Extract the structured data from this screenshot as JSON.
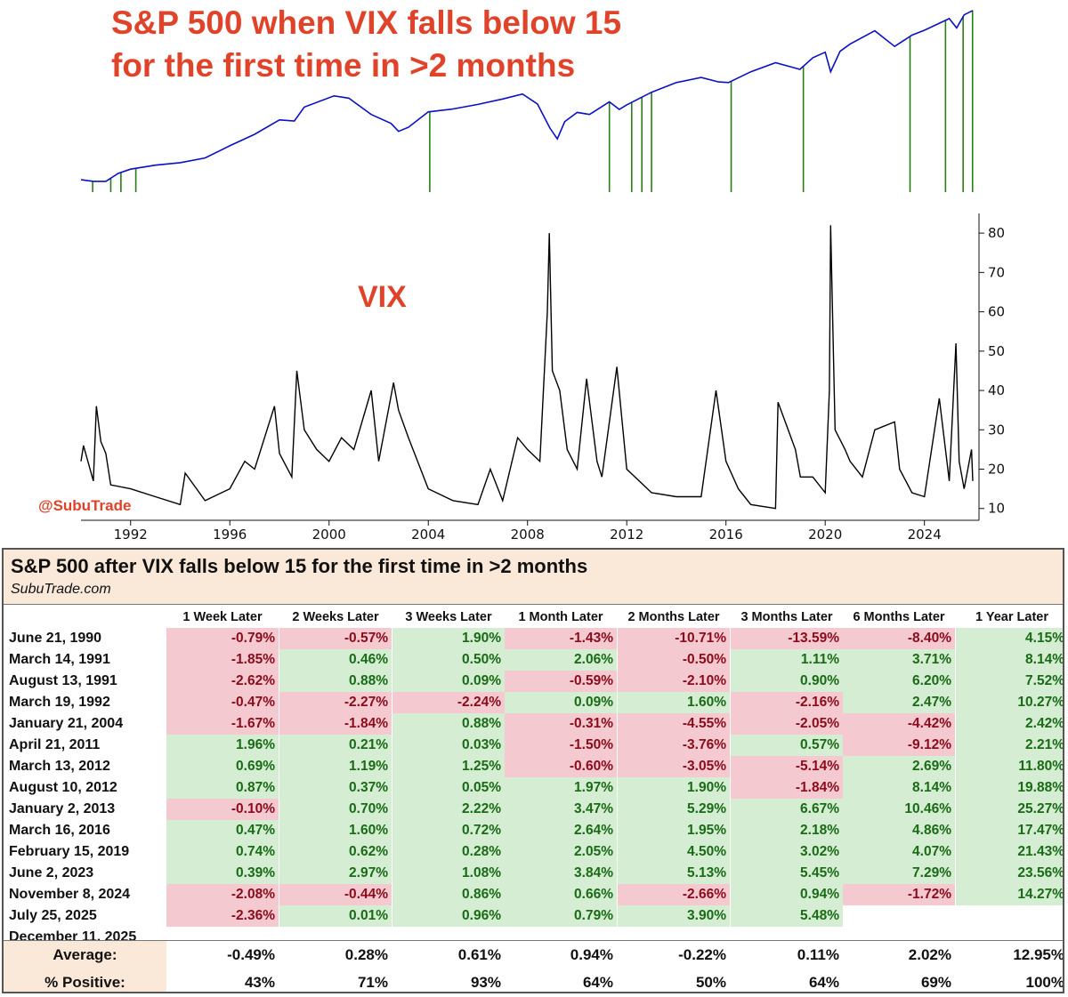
{
  "top_title": [
    "S&P 500 when VIX falls below 15",
    "for the first time in >2 months"
  ],
  "vix_label": "VIX",
  "handle": "@SubuTrade",
  "colors": {
    "spx_line": "#0b10c4",
    "marker": "#2b7d16",
    "vix_line": "#000000",
    "title_red": "#e0432a",
    "cell_pos": "#d4edd3",
    "cell_neg": "#f4c9cf",
    "header_bg": "#fae8d8"
  },
  "chart_data": [
    {
      "type": "line",
      "title": "S&P 500 when VIX falls below 15 for the first time in >2 months",
      "scale": "log",
      "x": [
        1990.0,
        1990.5,
        1991.0,
        1991.5,
        1992.0,
        1993.0,
        1994.0,
        1995.0,
        1996.0,
        1997.0,
        1998.0,
        1998.6,
        1999.0,
        2000.2,
        2000.8,
        2001.7,
        2002.5,
        2002.8,
        2003.2,
        2004.0,
        2005.0,
        2006.0,
        2007.0,
        2007.8,
        2008.4,
        2008.9,
        2009.2,
        2009.5,
        2010.0,
        2010.5,
        2011.3,
        2011.7,
        2012.0,
        2013.0,
        2014.0,
        2015.0,
        2015.7,
        2016.1,
        2017.0,
        2018.0,
        2018.98,
        2019.5,
        2020.0,
        2020.22,
        2020.6,
        2021.0,
        2022.0,
        2022.8,
        2023.5,
        2024.0,
        2025.0,
        2025.3,
        2025.6,
        2025.95
      ],
      "values": [
        340,
        330,
        330,
        380,
        410,
        440,
        460,
        500,
        620,
        760,
        980,
        960,
        1230,
        1500,
        1440,
        1080,
        920,
        800,
        860,
        1130,
        1190,
        1290,
        1420,
        1550,
        1300,
        850,
        700,
        950,
        1120,
        1080,
        1350,
        1180,
        1280,
        1600,
        1900,
        2080,
        1920,
        1900,
        2300,
        2700,
        2400,
        2950,
        3250,
        2300,
        3300,
        3750,
        4750,
        3600,
        4400,
        4800,
        5900,
        5000,
        6300,
        6800
      ],
      "ylim": [
        300,
        7000
      ],
      "signal_dates": [
        "June 21, 1990",
        "March 14, 1991",
        "August 13, 1991",
        "March 19, 1992",
        "January 21, 2004",
        "April 21, 2011",
        "March 13, 2012",
        "August 10, 2012",
        "January 2, 2013",
        "March 16, 2016",
        "February 15, 2019",
        "June 2, 2023",
        "November 8, 2024",
        "July 25, 2025",
        "December 11, 2025"
      ],
      "signal_x": [
        1990.47,
        1991.2,
        1991.61,
        1992.21,
        2004.06,
        2011.3,
        2012.2,
        2012.61,
        2013.0,
        2016.21,
        2019.12,
        2023.42,
        2024.85,
        2025.56,
        2025.94
      ]
    },
    {
      "type": "line",
      "title": "VIX",
      "x": [
        1990.0,
        1990.1,
        1990.5,
        1990.62,
        1990.8,
        1991.0,
        1991.2,
        1992.0,
        1993.0,
        1994.0,
        1994.2,
        1995.0,
        1996.0,
        1996.6,
        1997.0,
        1997.8,
        1998.0,
        1998.5,
        1998.7,
        1999.0,
        1999.5,
        2000.0,
        2000.5,
        2001.0,
        2001.7,
        2002.0,
        2002.6,
        2002.8,
        2003.2,
        2004.0,
        2005.0,
        2006.0,
        2006.5,
        2007.0,
        2007.6,
        2008.0,
        2008.5,
        2008.8,
        2008.88,
        2009.0,
        2009.3,
        2009.6,
        2010.0,
        2010.38,
        2010.8,
        2011.0,
        2011.6,
        2012.0,
        2013.0,
        2014.0,
        2015.0,
        2015.6,
        2016.0,
        2016.5,
        2017.0,
        2018.0,
        2018.1,
        2018.8,
        2019.0,
        2019.5,
        2020.0,
        2020.17,
        2020.22,
        2020.4,
        2020.8,
        2021.0,
        2021.5,
        2022.0,
        2022.8,
        2023.0,
        2023.5,
        2024.0,
        2024.6,
        2025.0,
        2025.27,
        2025.4,
        2025.6,
        2025.9,
        2025.95
      ],
      "values": [
        22,
        26,
        17,
        36,
        27,
        24,
        16,
        15,
        13,
        11,
        19,
        12,
        15,
        22,
        20,
        36,
        24,
        18,
        45,
        30,
        25,
        22,
        28,
        25,
        40,
        22,
        42,
        35,
        28,
        15,
        12,
        11,
        20,
        12,
        28,
        25,
        22,
        60,
        80,
        45,
        40,
        25,
        20,
        43,
        22,
        18,
        46,
        20,
        14,
        13,
        13,
        40,
        22,
        15,
        11,
        10,
        37,
        25,
        18,
        18,
        14,
        40,
        82,
        30,
        25,
        22,
        18,
        30,
        32,
        20,
        14,
        13,
        38,
        17,
        52,
        22,
        15,
        25,
        17
      ],
      "ylim": [
        7,
        85
      ],
      "yticks": [
        10,
        20,
        30,
        40,
        50,
        60,
        70,
        80
      ],
      "xticks": [
        1992,
        1996,
        2000,
        2004,
        2008,
        2012,
        2016,
        2020,
        2024
      ]
    },
    {
      "type": "table",
      "title": "S&P 500 after VIX falls below 15 for the first time in >2 months",
      "subtitle": "SubuTrade.com",
      "columns": [
        "1 Week Later",
        "2 Weeks Later",
        "3 Weeks Later",
        "1 Month Later",
        "2 Months Later",
        "3 Months Later",
        "6 Months Later",
        "1 Year Later"
      ],
      "rows": [
        {
          "date": "June 21, 1990",
          "values": [
            "-0.79%",
            "-0.57%",
            "1.90%",
            "-1.43%",
            "-10.71%",
            "-13.59%",
            "-8.40%",
            "4.15%"
          ]
        },
        {
          "date": "March 14, 1991",
          "values": [
            "-1.85%",
            "0.46%",
            "0.50%",
            "2.06%",
            "-0.50%",
            "1.11%",
            "3.71%",
            "8.14%"
          ]
        },
        {
          "date": "August 13, 1991",
          "values": [
            "-2.62%",
            "0.88%",
            "0.09%",
            "-0.59%",
            "-2.10%",
            "0.90%",
            "6.20%",
            "7.52%"
          ]
        },
        {
          "date": "March 19, 1992",
          "values": [
            "-0.47%",
            "-2.27%",
            "-2.24%",
            "0.09%",
            "1.60%",
            "-2.16%",
            "2.47%",
            "10.27%"
          ]
        },
        {
          "date": "January 21, 2004",
          "values": [
            "-1.67%",
            "-1.84%",
            "0.88%",
            "-0.31%",
            "-4.55%",
            "-2.05%",
            "-4.42%",
            "2.42%"
          ]
        },
        {
          "date": "April 21, 2011",
          "values": [
            "1.96%",
            "0.21%",
            "0.03%",
            "-1.50%",
            "-3.76%",
            "0.57%",
            "-9.12%",
            "2.21%"
          ]
        },
        {
          "date": "March 13, 2012",
          "values": [
            "0.69%",
            "1.19%",
            "1.25%",
            "-0.60%",
            "-3.05%",
            "-5.14%",
            "2.69%",
            "11.80%"
          ]
        },
        {
          "date": "August 10, 2012",
          "values": [
            "0.87%",
            "0.37%",
            "0.05%",
            "1.97%",
            "1.90%",
            "-1.84%",
            "8.14%",
            "19.88%"
          ]
        },
        {
          "date": "January 2, 2013",
          "values": [
            "-0.10%",
            "0.70%",
            "2.22%",
            "3.47%",
            "5.29%",
            "6.67%",
            "10.46%",
            "25.27%"
          ]
        },
        {
          "date": "March 16, 2016",
          "values": [
            "0.47%",
            "1.60%",
            "0.72%",
            "2.64%",
            "1.95%",
            "2.18%",
            "4.86%",
            "17.47%"
          ]
        },
        {
          "date": "February 15, 2019",
          "values": [
            "0.74%",
            "0.62%",
            "0.28%",
            "2.05%",
            "4.50%",
            "3.02%",
            "4.07%",
            "21.43%"
          ]
        },
        {
          "date": "June 2, 2023",
          "values": [
            "0.39%",
            "2.97%",
            "1.08%",
            "3.84%",
            "5.13%",
            "5.45%",
            "7.29%",
            "23.56%"
          ]
        },
        {
          "date": "November 8, 2024",
          "values": [
            "-2.08%",
            "-0.44%",
            "0.86%",
            "0.66%",
            "-2.66%",
            "0.94%",
            "-1.72%",
            "14.27%"
          ]
        },
        {
          "date": "July 25, 2025",
          "values": [
            "-2.36%",
            "0.01%",
            "0.96%",
            "0.79%",
            "3.90%",
            "5.48%",
            "",
            ""
          ]
        },
        {
          "date": "December 11, 2025",
          "values": [
            "",
            "",
            "",
            "",
            "",
            "",
            "",
            ""
          ]
        }
      ],
      "summary": [
        {
          "label": "Average:",
          "values": [
            "-0.49%",
            "0.28%",
            "0.61%",
            "0.94%",
            "-0.22%",
            "0.11%",
            "2.02%",
            "12.95%"
          ]
        },
        {
          "label": "% Positive:",
          "values": [
            "43%",
            "71%",
            "93%",
            "64%",
            "50%",
            "64%",
            "69%",
            "100%"
          ]
        }
      ]
    }
  ]
}
